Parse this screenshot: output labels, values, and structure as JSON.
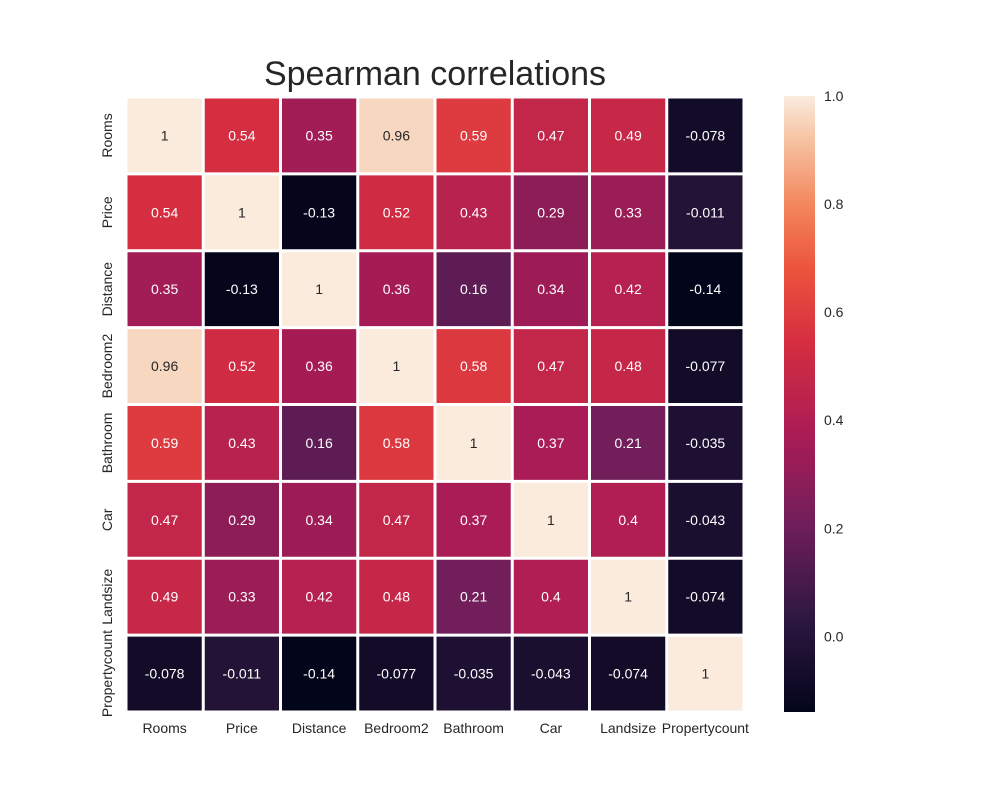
{
  "chart_data": {
    "type": "heatmap",
    "title": "Spearman correlations",
    "xlabel": "",
    "ylabel": "",
    "x_categories": [
      "Rooms",
      "Price",
      "Distance",
      "Bedroom2",
      "Bathroom",
      "Car",
      "Landsize",
      "Propertycount"
    ],
    "y_categories": [
      "Rooms",
      "Price",
      "Distance",
      "Bedroom2",
      "Bathroom",
      "Car",
      "Landsize",
      "Propertycount"
    ],
    "values": [
      [
        1,
        0.54,
        0.35,
        0.96,
        0.59,
        0.47,
        0.49,
        -0.078
      ],
      [
        0.54,
        1,
        -0.13,
        0.52,
        0.43,
        0.29,
        0.33,
        -0.011
      ],
      [
        0.35,
        -0.13,
        1,
        0.36,
        0.16,
        0.34,
        0.42,
        -0.14
      ],
      [
        0.96,
        0.52,
        0.36,
        1,
        0.58,
        0.47,
        0.48,
        -0.077
      ],
      [
        0.59,
        0.43,
        0.16,
        0.58,
        1,
        0.37,
        0.21,
        -0.035
      ],
      [
        0.47,
        0.29,
        0.34,
        0.47,
        0.37,
        1,
        0.4,
        -0.043
      ],
      [
        0.49,
        0.33,
        0.42,
        0.48,
        0.21,
        0.4,
        1,
        -0.074
      ],
      [
        -0.078,
        -0.011,
        -0.14,
        -0.077,
        -0.035,
        -0.043,
        -0.074,
        1
      ]
    ],
    "value_labels": [
      [
        "1",
        "0.54",
        "0.35",
        "0.96",
        "0.59",
        "0.47",
        "0.49",
        "-0.078"
      ],
      [
        "0.54",
        "1",
        "-0.13",
        "0.52",
        "0.43",
        "0.29",
        "0.33",
        "-0.011"
      ],
      [
        "0.35",
        "-0.13",
        "1",
        "0.36",
        "0.16",
        "0.34",
        "0.42",
        "-0.14"
      ],
      [
        "0.96",
        "0.52",
        "0.36",
        "1",
        "0.58",
        "0.47",
        "0.48",
        "-0.077"
      ],
      [
        "0.59",
        "0.43",
        "0.16",
        "0.58",
        "1",
        "0.37",
        "0.21",
        "-0.035"
      ],
      [
        "0.47",
        "0.29",
        "0.34",
        "0.47",
        "0.37",
        "1",
        "0.4",
        "-0.043"
      ],
      [
        "0.49",
        "0.33",
        "0.42",
        "0.48",
        "0.21",
        "0.4",
        "1",
        "-0.074"
      ],
      [
        "-0.078",
        "-0.011",
        "-0.14",
        "-0.077",
        "-0.035",
        "-0.043",
        "-0.074",
        "1"
      ]
    ],
    "colormap": "rocket",
    "vmin": -0.14,
    "vmax": 1.0,
    "colorbar": {
      "ticks": [
        1.0,
        0.8,
        0.6,
        0.4,
        0.2,
        0.0
      ],
      "tick_labels": [
        "1.0",
        "0.8",
        "0.6",
        "0.4",
        "0.2",
        "0.0"
      ],
      "placement": "right"
    },
    "grid": false,
    "cell_separator_color": "#ffffff"
  }
}
